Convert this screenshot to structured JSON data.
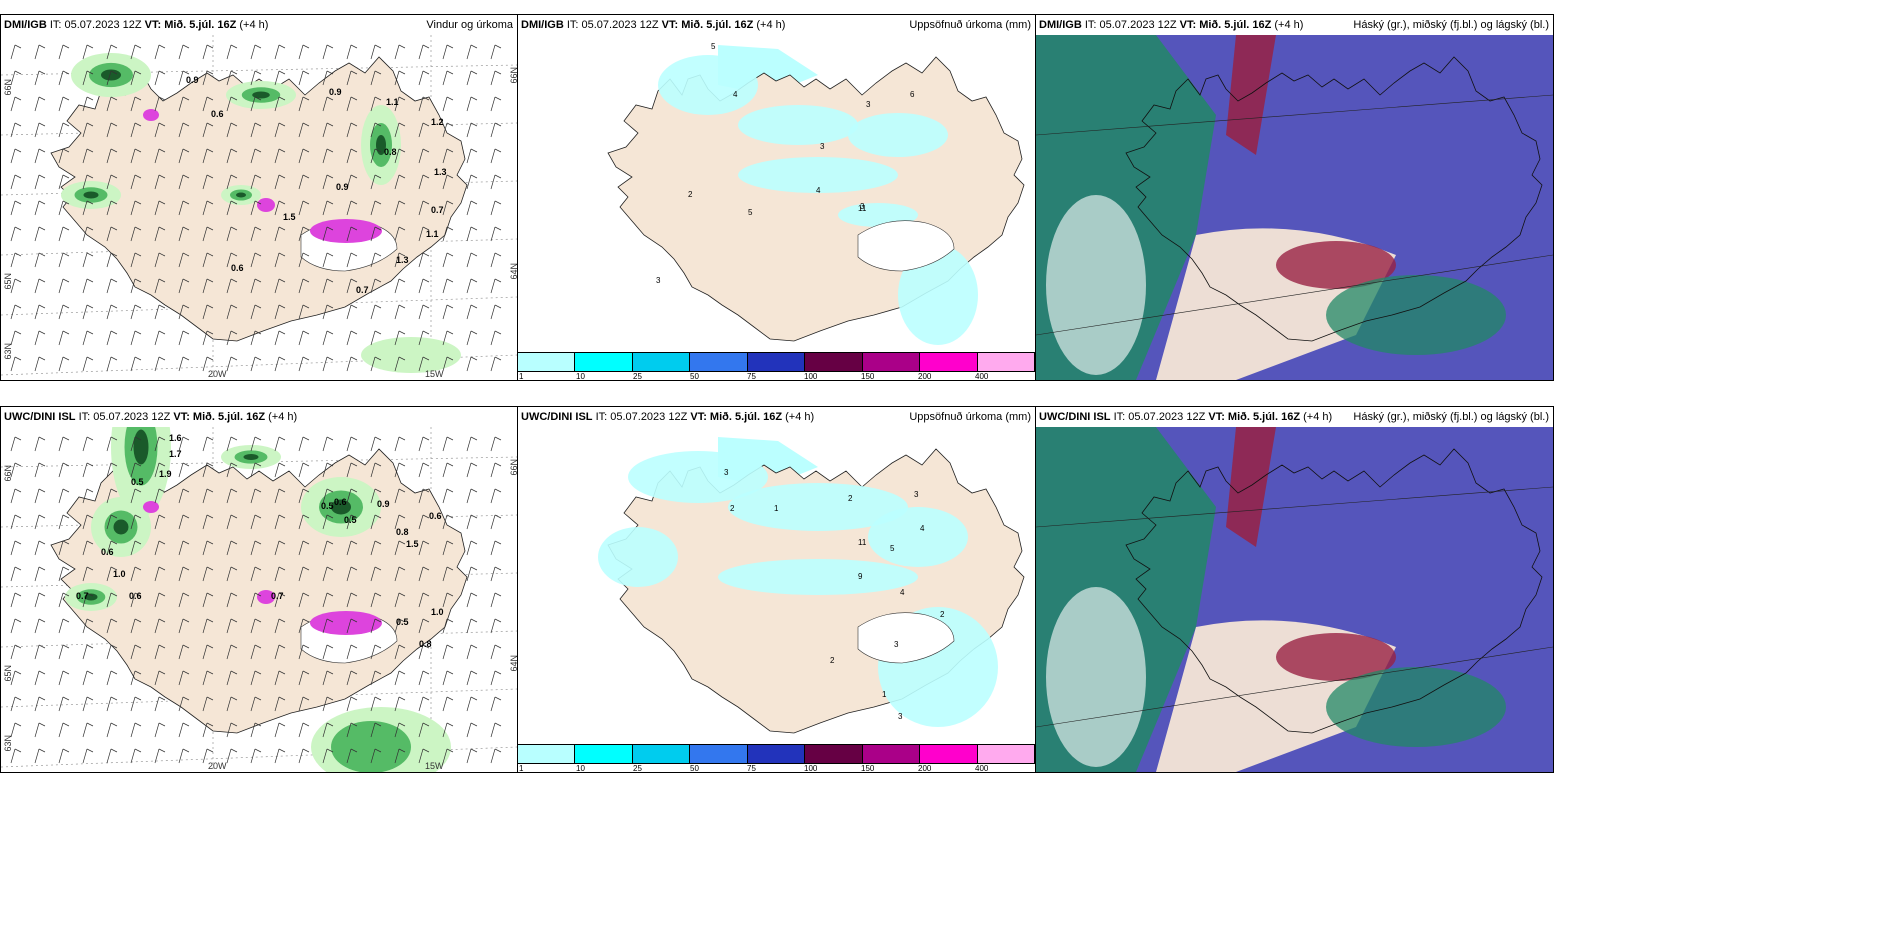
{
  "panels": [
    {
      "id": "p1",
      "source": "DMI/IGB",
      "it": "IT: 05.07.2023 12Z",
      "vt": "VT: Mið. 5.júl. 16Z",
      "lead": "(+4 h)",
      "title": "Vindur og úrkoma",
      "type": "wind"
    },
    {
      "id": "p2",
      "source": "DMI/IGB",
      "it": "IT: 05.07.2023 12Z",
      "vt": "VT: Mið. 5.júl. 16Z",
      "lead": "(+4 h)",
      "title": "Uppsöfnuð úrkoma (mm)",
      "type": "accum"
    },
    {
      "id": "p3",
      "source": "DMI/IGB",
      "it": "IT: 05.07.2023 12Z",
      "vt": "VT: Mið. 5.júl. 16Z",
      "lead": "(+4 h)",
      "title": "Háský (gr.), miðský (fj.bl.) og lágský (bl.)",
      "type": "cloud"
    },
    {
      "id": "p4",
      "source": "UWC/DINI ISL",
      "it": "IT: 05.07.2023 12Z",
      "vt": "VT: Mið. 5.júl. 16Z",
      "lead": "(+4 h)",
      "title": "",
      "type": "wind"
    },
    {
      "id": "p5",
      "source": "UWC/DINI ISL",
      "it": "IT: 05.07.2023 12Z",
      "vt": "VT: Mið. 5.júl. 16Z",
      "lead": "(+4 h)",
      "title": "Uppsöfnuð úrkoma (mm)",
      "type": "accum"
    },
    {
      "id": "p6",
      "source": "UWC/DINI ISL",
      "it": "IT: 05.07.2023 12Z",
      "vt": "VT: Mið. 5.júl. 16Z",
      "lead": "(+4 h)",
      "title": "Háský (gr.), miðský (fj.bl.) og lágský (bl.)",
      "type": "cloud"
    }
  ],
  "axes": {
    "lat66": "66N",
    "lat64": "64N",
    "lat65": "65N",
    "lon20": "20W",
    "lon15": "15W",
    "lat63": "63N"
  },
  "legend": {
    "labels": [
      "1",
      "10",
      "25",
      "50",
      "75",
      "100",
      "150",
      "200",
      "400"
    ],
    "colors": [
      "#b8ffff",
      "#00ffff",
      "#00ccee",
      "#3377ee",
      "#2233bb",
      "#660044",
      "#aa0088",
      "#ff00cc",
      "#ffaaee"
    ]
  },
  "colors": {
    "land": "#f5e6d6",
    "ice": "#ffffff",
    "green_light": "#ccf5c4",
    "green_mid": "#55bb66",
    "green_dark": "#1a5a2a",
    "magenta": "#dd44dd",
    "cyan_light": "#bbffff",
    "cloud_high": "#5555bb",
    "cloud_mid": "#228866",
    "cloud_low": "#3366aa",
    "cloud_red": "#992244"
  },
  "p1_labels": [
    "0.9",
    "0.6",
    "0.9",
    "1.1",
    "1.2",
    "1.3",
    "0.8",
    "0.7",
    "1.1",
    "0.6",
    "1.3",
    "0.7",
    "0.9",
    "1.5"
  ],
  "p4_labels": [
    "1.6",
    "1.7",
    "1.9",
    "0.5",
    "0.5",
    "0.6",
    "0.9",
    "0.5",
    "0.6",
    "0.8",
    "1.5",
    "1.0",
    "0.7",
    "0.6",
    "0.7",
    "0.5",
    "1.0",
    "0.8",
    "0.6"
  ],
  "p2_labels": [
    "5",
    "4",
    "3",
    "6",
    "3",
    "4",
    "5",
    "3",
    "11",
    "2",
    "3"
  ],
  "p5_labels": [
    "3",
    "2",
    "1",
    "2",
    "3",
    "4",
    "5",
    "11",
    "9",
    "4",
    "2",
    "3",
    "2",
    "1",
    "3"
  ]
}
